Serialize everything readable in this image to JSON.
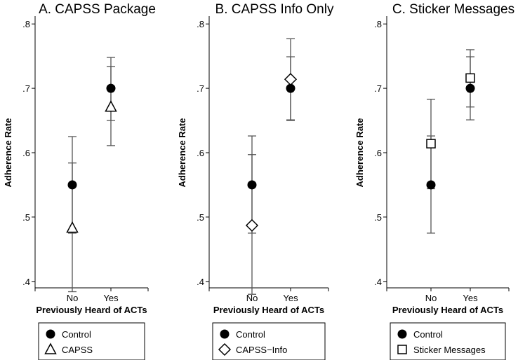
{
  "chart_data": [
    {
      "type": "scatter",
      "title": "A. CAPSS Package",
      "xlabel": "Previously Heard of ACTs",
      "ylabel": "Adherence Rate",
      "categories": [
        "No",
        "Yes"
      ],
      "ylim": [
        0.39,
        0.81
      ],
      "yticks": [
        0.4,
        0.5,
        0.6,
        0.7,
        0.8
      ],
      "ytick_labels": [
        ".4",
        ".5",
        ".6",
        ".7",
        ".8"
      ],
      "grid": false,
      "legend_position": "bottom",
      "series": [
        {
          "name": "Control",
          "marker": "circle",
          "values": [
            0.55,
            0.7
          ],
          "ci_low": [
            0.475,
            0.65
          ],
          "ci_high": [
            0.625,
            0.748
          ]
        },
        {
          "name": "CAPSS",
          "marker": "triangle",
          "values": [
            0.483,
            0.671
          ],
          "ci_low": [
            0.384,
            0.611
          ],
          "ci_high": [
            0.584,
            0.734
          ]
        }
      ]
    },
    {
      "type": "scatter",
      "title": "B. CAPSS Info Only",
      "xlabel": "Previously Heard of ACTs",
      "ylabel": "Adherence Rate",
      "categories": [
        "No",
        "Yes"
      ],
      "ylim": [
        0.39,
        0.81
      ],
      "yticks": [
        0.4,
        0.5,
        0.6,
        0.7,
        0.8
      ],
      "ytick_labels": [
        ".4",
        ".5",
        ".6",
        ".7",
        ".8"
      ],
      "grid": false,
      "legend_position": "bottom",
      "series": [
        {
          "name": "Control",
          "marker": "circle",
          "values": [
            0.55,
            0.7
          ],
          "ci_low": [
            0.475,
            0.65
          ],
          "ci_high": [
            0.626,
            0.749
          ]
        },
        {
          "name": "CAPSS−Info",
          "marker": "diamond",
          "values": [
            0.487,
            0.714
          ],
          "ci_low": [
            0.38,
            0.651
          ],
          "ci_high": [
            0.597,
            0.777
          ]
        }
      ]
    },
    {
      "type": "scatter",
      "title": "C. Sticker Messages",
      "xlabel": "Previously Heard of ACTs",
      "ylabel": "Adherence Rate",
      "categories": [
        "No",
        "Yes"
      ],
      "ylim": [
        0.39,
        0.81
      ],
      "yticks": [
        0.4,
        0.5,
        0.6,
        0.7,
        0.8
      ],
      "ytick_labels": [
        ".4",
        ".5",
        ".6",
        ".7",
        ".8"
      ],
      "grid": false,
      "legend_position": "bottom",
      "series": [
        {
          "name": "Control",
          "marker": "circle",
          "values": [
            0.55,
            0.7
          ],
          "ci_low": [
            0.475,
            0.651
          ],
          "ci_high": [
            0.626,
            0.749
          ]
        },
        {
          "name": "Sticker Messages",
          "marker": "square",
          "values": [
            0.614,
            0.716
          ],
          "ci_low": [
            0.544,
            0.671
          ],
          "ci_high": [
            0.683,
            0.76
          ]
        }
      ]
    }
  ]
}
